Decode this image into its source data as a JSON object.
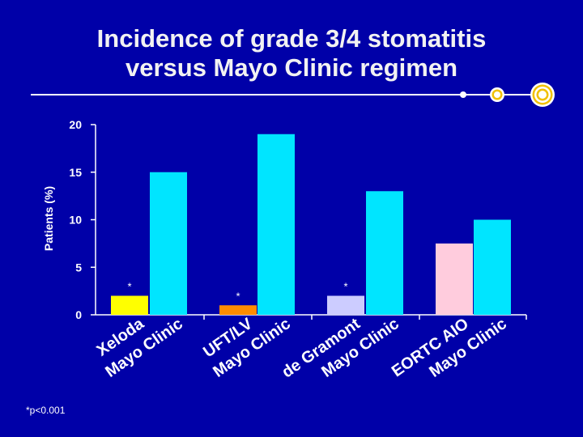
{
  "slide": {
    "title_line1": "Incidence of grade 3/4 stomatitis",
    "title_line2": "versus Mayo Clinic regimen",
    "footnote": "*p<0.001",
    "colors": {
      "background": "#0000a8",
      "title": "#f2f2f2",
      "decor_line": "#ffffff",
      "decor_ring": "#f0c000"
    }
  },
  "chart_data": {
    "type": "bar",
    "title": "",
    "ylabel": "Patients (%)",
    "xlabel": "",
    "ylim": [
      0,
      20
    ],
    "yticks": [
      0,
      5,
      10,
      15,
      20
    ],
    "grid": false,
    "legend": "none",
    "categories": [
      "Xeloda",
      "Mayo Clinic",
      "UFT/LV",
      "Mayo Clinic",
      "de Gramont",
      "Mayo Clinic",
      "EORTC AIO",
      "Mayo Clinic"
    ],
    "values": [
      2,
      15,
      1,
      19,
      2,
      13,
      7.5,
      10
    ],
    "colors": [
      "#ffff00",
      "#00e5ff",
      "#ff8c00",
      "#00e5ff",
      "#ccccff",
      "#00e5ff",
      "#ffccdd",
      "#00e5ff"
    ],
    "annotations": [
      "*",
      "",
      "*",
      "",
      "*",
      "",
      "",
      ""
    ]
  }
}
